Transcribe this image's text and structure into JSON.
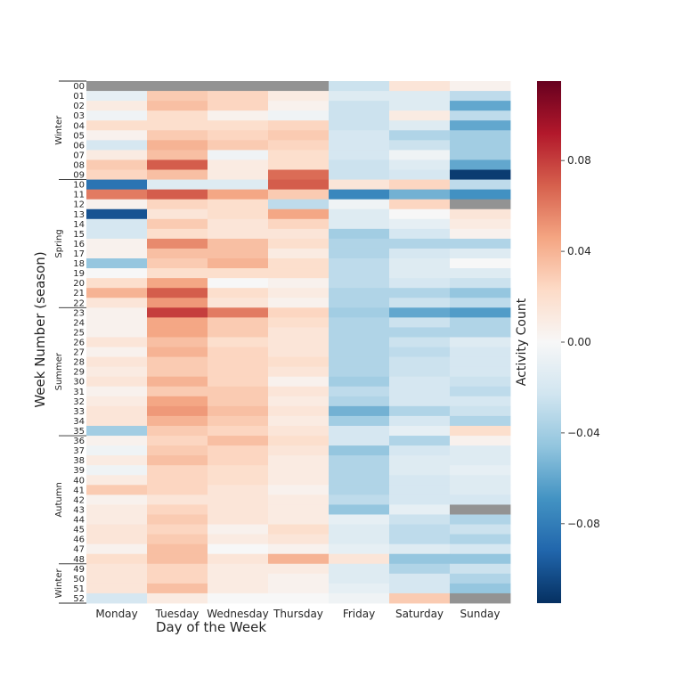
{
  "chart_data": {
    "type": "heatmap",
    "xlabel": "Day of the Week",
    "ylabel": "Week Number (season)",
    "colorbar_label": "Activity Count",
    "colorbar_ticks": [
      "0.08",
      "0.04",
      "0.00",
      "−0.04",
      "−0.08"
    ],
    "colorbar_tick_values": [
      0.08,
      0.04,
      0.0,
      -0.04,
      -0.08
    ],
    "vmin": -0.115,
    "vmax": 0.115,
    "colormap": "RdBu_r",
    "missing_color": "#939393",
    "x_categories": [
      "Monday",
      "Tuesday",
      "Wednesday",
      "Thursday",
      "Friday",
      "Saturday",
      "Sunday"
    ],
    "y_categories": [
      "00",
      "01",
      "02",
      "03",
      "04",
      "05",
      "06",
      "07",
      "08",
      "09",
      "10",
      "11",
      "12",
      "13",
      "14",
      "15",
      "16",
      "17",
      "18",
      "19",
      "20",
      "21",
      "22",
      "23",
      "24",
      "25",
      "26",
      "27",
      "28",
      "29",
      "30",
      "31",
      "32",
      "33",
      "34",
      "35",
      "36",
      "37",
      "38",
      "39",
      "40",
      "41",
      "42",
      "43",
      "44",
      "45",
      "46",
      "47",
      "48",
      "49",
      "50",
      "51",
      "52"
    ],
    "seasons": [
      {
        "label": "Winter",
        "start": 0,
        "end": 9
      },
      {
        "label": "Spring",
        "start": 10,
        "end": 22
      },
      {
        "label": "Summer",
        "start": 23,
        "end": 35
      },
      {
        "label": "Autumn",
        "start": 36,
        "end": 48
      },
      {
        "label": "Winter",
        "start": 49,
        "end": 52
      }
    ],
    "values": [
      [
        null,
        null,
        null,
        null,
        -0.025,
        0.015,
        0.005
      ],
      [
        -0.01,
        0.03,
        0.025,
        0.01,
        -0.015,
        -0.015,
        -0.03
      ],
      [
        0.01,
        0.035,
        0.025,
        0.005,
        -0.025,
        -0.015,
        -0.06
      ],
      [
        -0.005,
        0.02,
        0.005,
        -0.005,
        -0.025,
        0.01,
        -0.03
      ],
      [
        0.02,
        0.02,
        0.02,
        0.025,
        -0.025,
        -0.015,
        -0.06
      ],
      [
        0.005,
        0.03,
        0.025,
        0.03,
        -0.02,
        -0.035,
        -0.04
      ],
      [
        -0.02,
        0.04,
        0.03,
        0.025,
        -0.02,
        -0.025,
        -0.04
      ],
      [
        0.01,
        0.035,
        -0.005,
        0.02,
        -0.02,
        -0.005,
        -0.04
      ],
      [
        0.03,
        0.07,
        0.01,
        0.02,
        -0.025,
        -0.015,
        -0.06
      ],
      [
        0.025,
        0.035,
        0.01,
        0.065,
        -0.025,
        -0.02,
        -0.11
      ],
      [
        -0.085,
        -0.015,
        -0.015,
        0.07,
        0.015,
        0.025,
        -0.03
      ],
      [
        0.06,
        0.07,
        0.045,
        0.03,
        -0.075,
        -0.055,
        -0.07
      ],
      [
        0.005,
        0.025,
        0.02,
        -0.03,
        -0.005,
        0.025,
        null
      ],
      [
        -0.1,
        0.015,
        0.02,
        0.045,
        -0.015,
        0.0,
        0.015
      ],
      [
        -0.02,
        0.03,
        0.015,
        0.025,
        -0.015,
        -0.01,
        0.01
      ],
      [
        -0.02,
        0.02,
        0.015,
        0.015,
        -0.04,
        -0.02,
        0.005
      ],
      [
        0.005,
        0.055,
        0.035,
        0.02,
        -0.035,
        -0.035,
        -0.035
      ],
      [
        0.005,
        0.035,
        0.035,
        0.01,
        -0.035,
        -0.02,
        -0.015
      ],
      [
        -0.045,
        0.03,
        0.04,
        0.02,
        -0.03,
        -0.015,
        0.0
      ],
      [
        0.0,
        0.02,
        0.02,
        0.02,
        -0.03,
        -0.015,
        -0.015
      ],
      [
        0.02,
        0.045,
        0.0,
        0.005,
        -0.03,
        -0.02,
        -0.025
      ],
      [
        0.04,
        0.07,
        0.02,
        0.01,
        -0.035,
        -0.035,
        -0.045
      ],
      [
        0.015,
        0.05,
        0.015,
        0.005,
        -0.035,
        -0.025,
        -0.03
      ],
      [
        0.005,
        0.08,
        0.06,
        0.025,
        -0.04,
        -0.06,
        -0.065
      ],
      [
        0.005,
        0.045,
        0.03,
        0.02,
        -0.035,
        -0.025,
        -0.035
      ],
      [
        0.005,
        0.045,
        0.03,
        0.015,
        -0.035,
        -0.035,
        -0.035
      ],
      [
        0.015,
        0.035,
        0.02,
        0.015,
        -0.035,
        -0.025,
        -0.015
      ],
      [
        0.005,
        0.04,
        0.025,
        0.015,
        -0.035,
        -0.03,
        -0.02
      ],
      [
        0.015,
        0.03,
        0.025,
        0.02,
        -0.035,
        -0.025,
        -0.02
      ],
      [
        0.01,
        0.03,
        0.025,
        0.015,
        -0.035,
        -0.025,
        -0.02
      ],
      [
        0.015,
        0.04,
        0.025,
        0.005,
        -0.04,
        -0.02,
        -0.025
      ],
      [
        0.005,
        0.03,
        0.03,
        0.015,
        -0.03,
        -0.02,
        -0.03
      ],
      [
        0.01,
        0.045,
        0.03,
        0.01,
        -0.035,
        -0.02,
        -0.02
      ],
      [
        0.015,
        0.05,
        0.035,
        0.015,
        -0.055,
        -0.035,
        -0.025
      ],
      [
        0.015,
        0.04,
        0.03,
        0.01,
        -0.04,
        -0.02,
        -0.035
      ],
      [
        -0.04,
        0.03,
        0.025,
        0.015,
        -0.02,
        -0.01,
        0.02
      ],
      [
        0.005,
        0.025,
        0.035,
        0.02,
        -0.02,
        -0.035,
        0.005
      ],
      [
        -0.005,
        0.03,
        0.025,
        0.015,
        -0.045,
        -0.02,
        -0.015
      ],
      [
        0.01,
        0.035,
        0.025,
        0.01,
        -0.035,
        -0.015,
        -0.015
      ],
      [
        -0.005,
        0.025,
        0.02,
        0.01,
        -0.035,
        -0.015,
        -0.01
      ],
      [
        0.01,
        0.025,
        0.02,
        0.01,
        -0.035,
        -0.02,
        -0.015
      ],
      [
        0.03,
        0.025,
        0.015,
        0.005,
        -0.035,
        -0.02,
        -0.015
      ],
      [
        0.005,
        0.015,
        0.015,
        0.01,
        -0.03,
        -0.02,
        -0.02
      ],
      [
        0.01,
        0.025,
        0.015,
        0.01,
        -0.045,
        -0.01,
        null
      ],
      [
        0.01,
        0.03,
        0.015,
        0.01,
        -0.01,
        -0.025,
        -0.035
      ],
      [
        0.015,
        0.025,
        0.005,
        0.02,
        -0.015,
        -0.03,
        -0.025
      ],
      [
        0.015,
        0.03,
        0.01,
        0.015,
        -0.015,
        -0.03,
        -0.035
      ],
      [
        0.005,
        0.035,
        0.0,
        0.005,
        -0.01,
        -0.015,
        -0.02
      ],
      [
        0.02,
        0.035,
        0.015,
        0.04,
        0.015,
        -0.045,
        -0.045
      ],
      [
        0.015,
        0.025,
        0.01,
        0.01,
        -0.015,
        -0.035,
        -0.025
      ],
      [
        0.015,
        0.025,
        0.01,
        0.005,
        -0.015,
        -0.02,
        -0.035
      ],
      [
        0.015,
        0.035,
        0.01,
        0.005,
        -0.01,
        -0.02,
        -0.045
      ],
      [
        -0.02,
        0.01,
        0.0,
        0.0,
        -0.005,
        0.03,
        null
      ]
    ]
  }
}
